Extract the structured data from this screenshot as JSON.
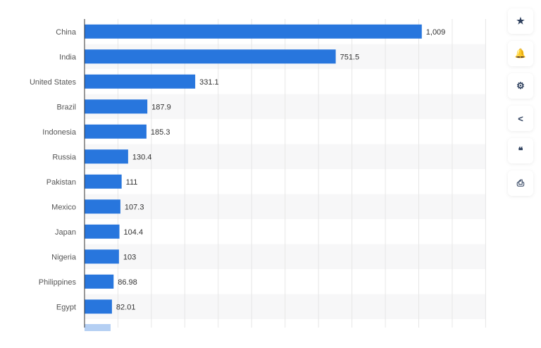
{
  "chart_data": {
    "type": "bar",
    "orientation": "horizontal",
    "categories": [
      "China",
      "India",
      "United States",
      "Brazil",
      "Indonesia",
      "Russia",
      "Pakistan",
      "Mexico",
      "Japan",
      "Nigeria",
      "Philippines",
      "Egypt"
    ],
    "values": [
      1009,
      751.5,
      331.1,
      187.9,
      185.3,
      130.4,
      111,
      107.3,
      104.4,
      103,
      86.98,
      82.01
    ],
    "labels": [
      "1,009",
      "751.5",
      "331.1",
      "187.9",
      "185.3",
      "130.4",
      "111",
      "107.3",
      "104.4",
      "103",
      "86.98",
      "82.01"
    ],
    "xlim": [
      0,
      1200
    ],
    "grid": true,
    "bar_color": "#2876dd"
  },
  "sidebar": {
    "buttons": [
      {
        "icon": "star-icon",
        "glyph": "★"
      },
      {
        "icon": "bell-icon",
        "glyph": "🔔"
      },
      {
        "icon": "gear-icon",
        "glyph": "⚙"
      },
      {
        "icon": "share-icon",
        "glyph": "<"
      },
      {
        "icon": "quote-icon",
        "glyph": "❝"
      },
      {
        "icon": "print-icon",
        "glyph": "⎙"
      }
    ]
  }
}
